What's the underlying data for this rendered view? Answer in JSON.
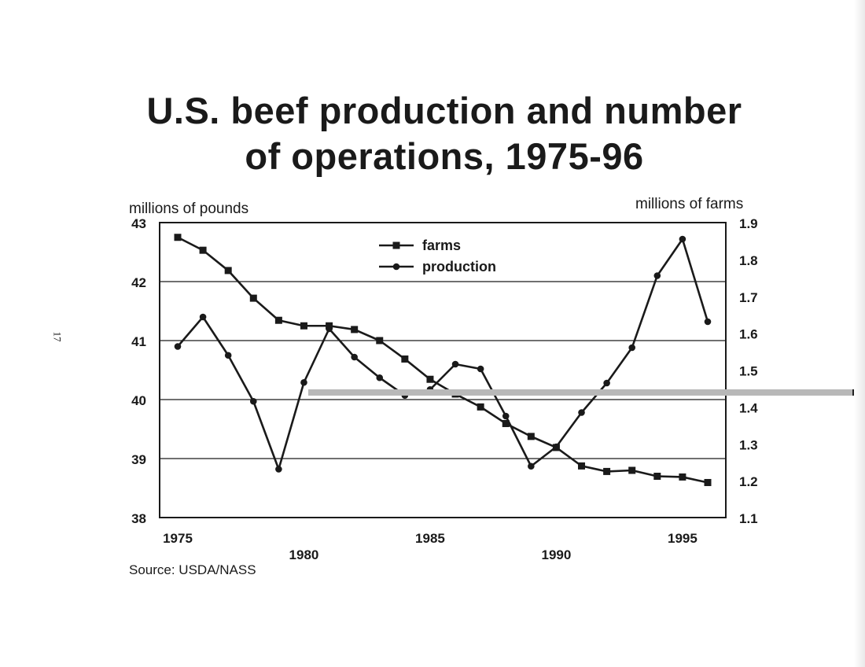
{
  "page": {
    "page_number": "17"
  },
  "chart_data": {
    "type": "line",
    "title_lines": [
      "U.S. beef production and number",
      "of operations, 1975-96"
    ],
    "ylabel_left": "millions of pounds",
    "ylabel_right": "millions of farms",
    "source": "Source:  USDA/NASS",
    "ylim_left": [
      38,
      43
    ],
    "ylim_right": [
      1.1,
      1.9
    ],
    "yticks_left": [
      "38",
      "39",
      "40",
      "41",
      "42",
      "43"
    ],
    "yticks_right": [
      "1.1",
      "1.2",
      "1.3",
      "1.4",
      "1.5",
      "1.6",
      "1.7",
      "1.8",
      "1.9"
    ],
    "xticks_lower": [
      "1975",
      "1985",
      "1995"
    ],
    "xticks_upper": [
      "1980",
      "1990"
    ],
    "xlim": [
      1975,
      1996
    ],
    "grid": "horizontal",
    "legend_position": "top-center",
    "x": [
      1975,
      1976,
      1977,
      1978,
      1979,
      1980,
      1981,
      1982,
      1983,
      1984,
      1985,
      1986,
      1987,
      1988,
      1989,
      1990,
      1991,
      1992,
      1993,
      1994,
      1995,
      1996
    ],
    "series": [
      {
        "name": "farms",
        "marker": "square",
        "axis": "right",
        "values": [
          1.86,
          1.825,
          1.77,
          1.695,
          1.635,
          1.62,
          1.62,
          1.61,
          1.58,
          1.53,
          1.475,
          1.435,
          1.4,
          1.355,
          1.32,
          1.29,
          1.24,
          1.225,
          1.228,
          1.212,
          1.21,
          1.195
        ]
      },
      {
        "name": "production",
        "marker": "circle",
        "axis": "left",
        "values": [
          40.9,
          41.4,
          40.75,
          39.97,
          38.82,
          40.29,
          41.2,
          40.72,
          40.37,
          40.07,
          40.17,
          40.6,
          40.52,
          39.72,
          38.87,
          39.2,
          39.78,
          40.28,
          40.88,
          42.1,
          42.72,
          41.32
        ]
      }
    ]
  }
}
